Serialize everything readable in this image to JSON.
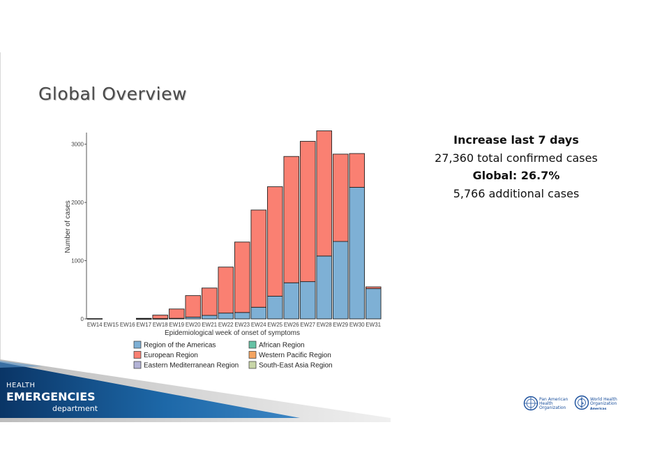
{
  "slide": {
    "title": "Global Overview"
  },
  "stats": {
    "heading": "Increase last 7 days",
    "total_value": "27,360",
    "total_label": " total confirmed cases",
    "global_label": "Global: 26.7%",
    "additional_value": "5,766",
    "additional_label": " additional cases"
  },
  "branding": {
    "line1": "HEALTH",
    "line2": "EMERGENCIES",
    "line3": "department",
    "paho_lines": [
      "Pan American",
      "Health",
      "Organization"
    ],
    "who_lines": [
      "World Health",
      "Organization"
    ],
    "who_sub": "Americas"
  },
  "colors": {
    "americas": "#7eb0d5",
    "european": "#fa8072",
    "eastern_med": "#b3b3d6",
    "african": "#66c2a5",
    "western_pacific": "#f4a460",
    "south_east_asia": "#c8d6a8",
    "band_dark": "#0d3a6e",
    "band_light": "#1f6fb0"
  },
  "chart_data": {
    "type": "bar",
    "stacked": true,
    "xlabel": "Epidemiological week of onset of symptoms",
    "ylabel": "Number of cases",
    "ylim": [
      0,
      3200
    ],
    "yticks": [
      0,
      1000,
      2000,
      3000
    ],
    "grid": false,
    "legend_position": "bottom",
    "categories": [
      "EW14",
      "EW15",
      "EW16",
      "EW17",
      "EW18",
      "EW19",
      "EW20",
      "EW21",
      "EW22",
      "EW23",
      "EW24",
      "EW25",
      "EW26",
      "EW27",
      "EW28",
      "EW29",
      "EW30",
      "EW31"
    ],
    "series": [
      {
        "name": "Region of the Americas",
        "color": "#7eb0d5",
        "values": [
          0,
          0,
          0,
          2,
          5,
          10,
          30,
          60,
          100,
          110,
          200,
          390,
          620,
          640,
          1080,
          1330,
          2260,
          520
        ]
      },
      {
        "name": "European Region",
        "color": "#fa8072",
        "values": [
          5,
          0,
          0,
          8,
          60,
          160,
          370,
          470,
          790,
          1210,
          1670,
          1880,
          2170,
          2410,
          2150,
          1500,
          580,
          30
        ]
      },
      {
        "name": "African Region",
        "color": "#66c2a5",
        "values": [
          0,
          0,
          0,
          0,
          0,
          0,
          0,
          0,
          0,
          0,
          0,
          0,
          0,
          0,
          0,
          0,
          0,
          0
        ]
      },
      {
        "name": "Western Pacific Region",
        "color": "#f4a460",
        "values": [
          0,
          0,
          0,
          0,
          0,
          0,
          0,
          0,
          0,
          0,
          0,
          0,
          0,
          0,
          0,
          0,
          0,
          0
        ]
      },
      {
        "name": "Eastern Mediterranean Region",
        "color": "#b3b3d6",
        "values": [
          0,
          0,
          0,
          0,
          0,
          0,
          0,
          0,
          0,
          0,
          0,
          0,
          0,
          0,
          0,
          0,
          0,
          0
        ]
      },
      {
        "name": "South-East Asia Region",
        "color": "#c8d6a8",
        "values": [
          0,
          0,
          0,
          0,
          0,
          0,
          0,
          0,
          0,
          0,
          0,
          0,
          0,
          0,
          0,
          0,
          0,
          0
        ]
      }
    ],
    "legend_order": [
      "Region of the Americas",
      "African Region",
      "European Region",
      "Western Pacific Region",
      "Eastern Mediterranean Region",
      "South-East Asia Region"
    ]
  }
}
